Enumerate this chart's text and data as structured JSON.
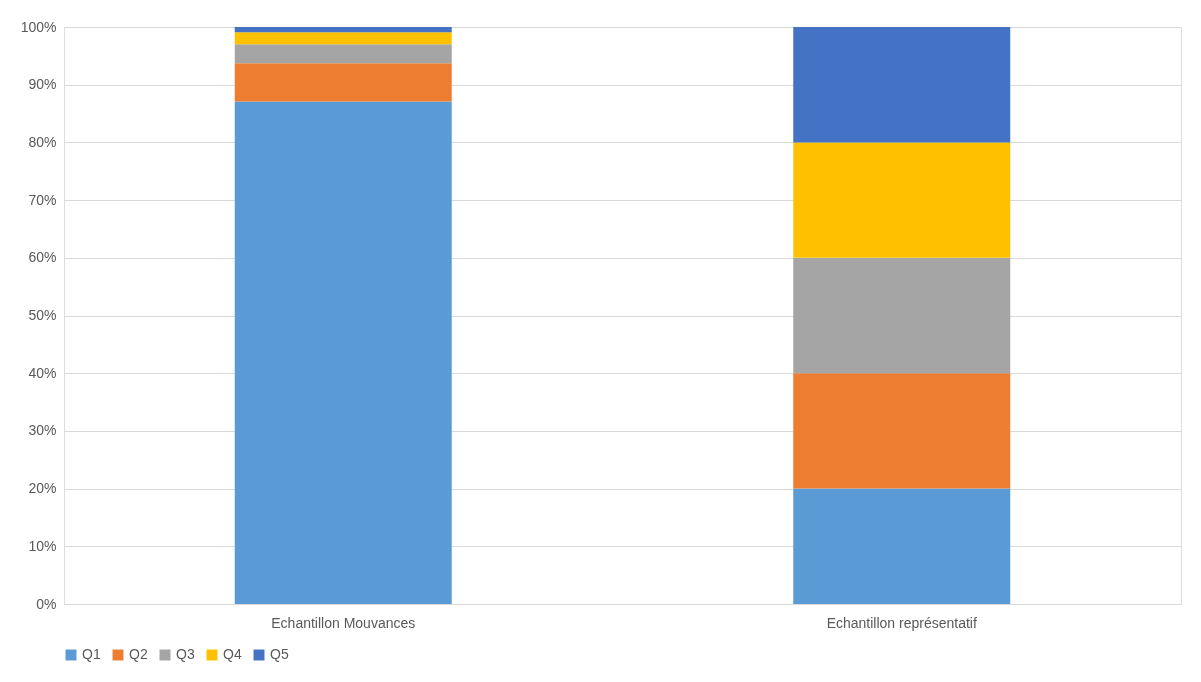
{
  "chart_data": {
    "type": "bar",
    "stacked": true,
    "categories": [
      "Echantillon Mouvances",
      "Echantillon représentatif"
    ],
    "series": [
      {
        "name": "Q1",
        "color": "#5b9bd5",
        "values": [
          87.1,
          20
        ]
      },
      {
        "name": "Q2",
        "color": "#ed7d31",
        "values": [
          6.6,
          20
        ]
      },
      {
        "name": "Q3",
        "color": "#a5a5a5",
        "values": [
          3.3,
          20
        ]
      },
      {
        "name": "Q4",
        "color": "#ffc000",
        "values": [
          2.1,
          20
        ]
      },
      {
        "name": "Q5",
        "color": "#4472c4",
        "values": [
          0.9,
          20
        ]
      }
    ],
    "ylim": [
      0,
      100
    ],
    "yticks": [
      {
        "value": 0,
        "label": "0%"
      },
      {
        "value": 10,
        "label": "10%"
      },
      {
        "value": 20,
        "label": "20%"
      },
      {
        "value": 30,
        "label": "30%"
      },
      {
        "value": 40,
        "label": "40%"
      },
      {
        "value": 50,
        "label": "50%"
      },
      {
        "value": 60,
        "label": "60%"
      },
      {
        "value": 70,
        "label": "70%"
      },
      {
        "value": 80,
        "label": "80%"
      },
      {
        "value": 90,
        "label": "90%"
      },
      {
        "value": 100,
        "label": "100%"
      }
    ],
    "grid": "y",
    "legend": "bottom"
  }
}
